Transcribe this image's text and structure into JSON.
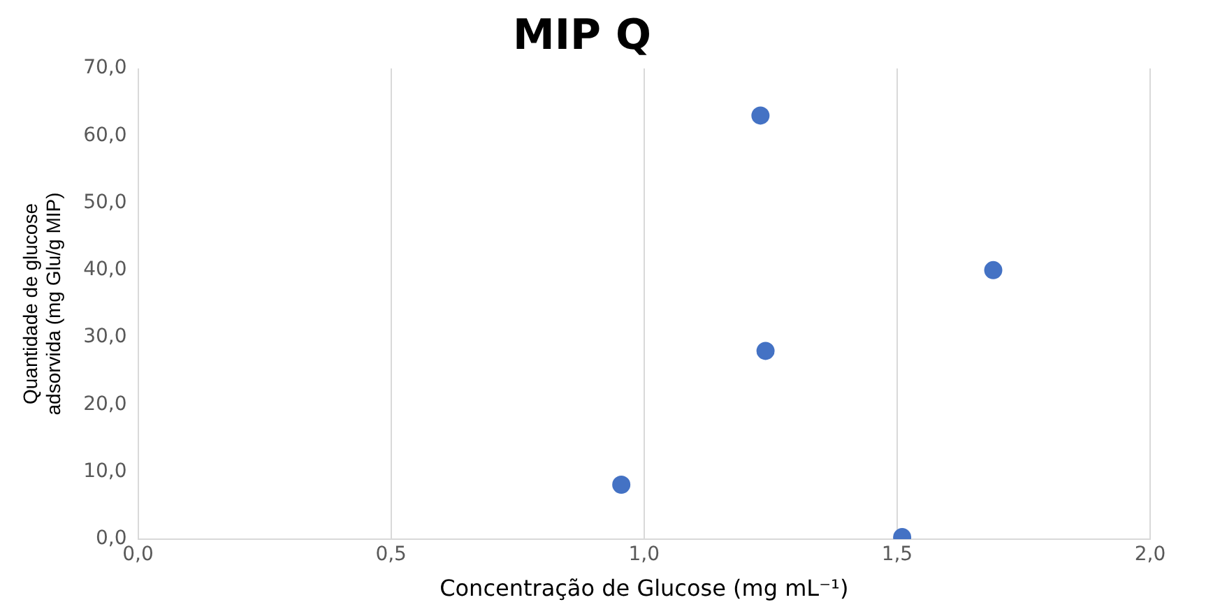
{
  "chart_data": {
    "type": "scatter",
    "title": "MIP Q",
    "xlabel": "Concentração de Glucose (mg mL⁻¹)",
    "ylabel": "Quantidade de glucose adsorvida (mg Glu/g MIP)",
    "x": [
      1.23,
      1.69,
      1.24,
      0.955,
      1.51
    ],
    "values": [
      63,
      40,
      28,
      8.1,
      0.3
    ],
    "color": "#4472c4",
    "marker": "circle",
    "xlim": [
      0,
      2
    ],
    "xticks": [
      {
        "value": 0,
        "label": "0,0"
      },
      {
        "value": 0.5,
        "label": "0,5"
      },
      {
        "value": 1,
        "label": "1,0"
      },
      {
        "value": 1.5,
        "label": "1,5"
      },
      {
        "value": 2,
        "label": "2,0"
      }
    ],
    "ylim": [
      0,
      70
    ],
    "yticks": [
      {
        "value": 0,
        "label": "0,0"
      },
      {
        "value": 10,
        "label": "10,0"
      },
      {
        "value": 20,
        "label": "20,0"
      },
      {
        "value": 30,
        "label": "30,0"
      },
      {
        "value": 40,
        "label": "40,0"
      },
      {
        "value": 50,
        "label": "50,0"
      },
      {
        "value": 60,
        "label": "60,0"
      },
      {
        "value": 70,
        "label": "70,0"
      }
    ],
    "grid": "x",
    "legend": false
  }
}
